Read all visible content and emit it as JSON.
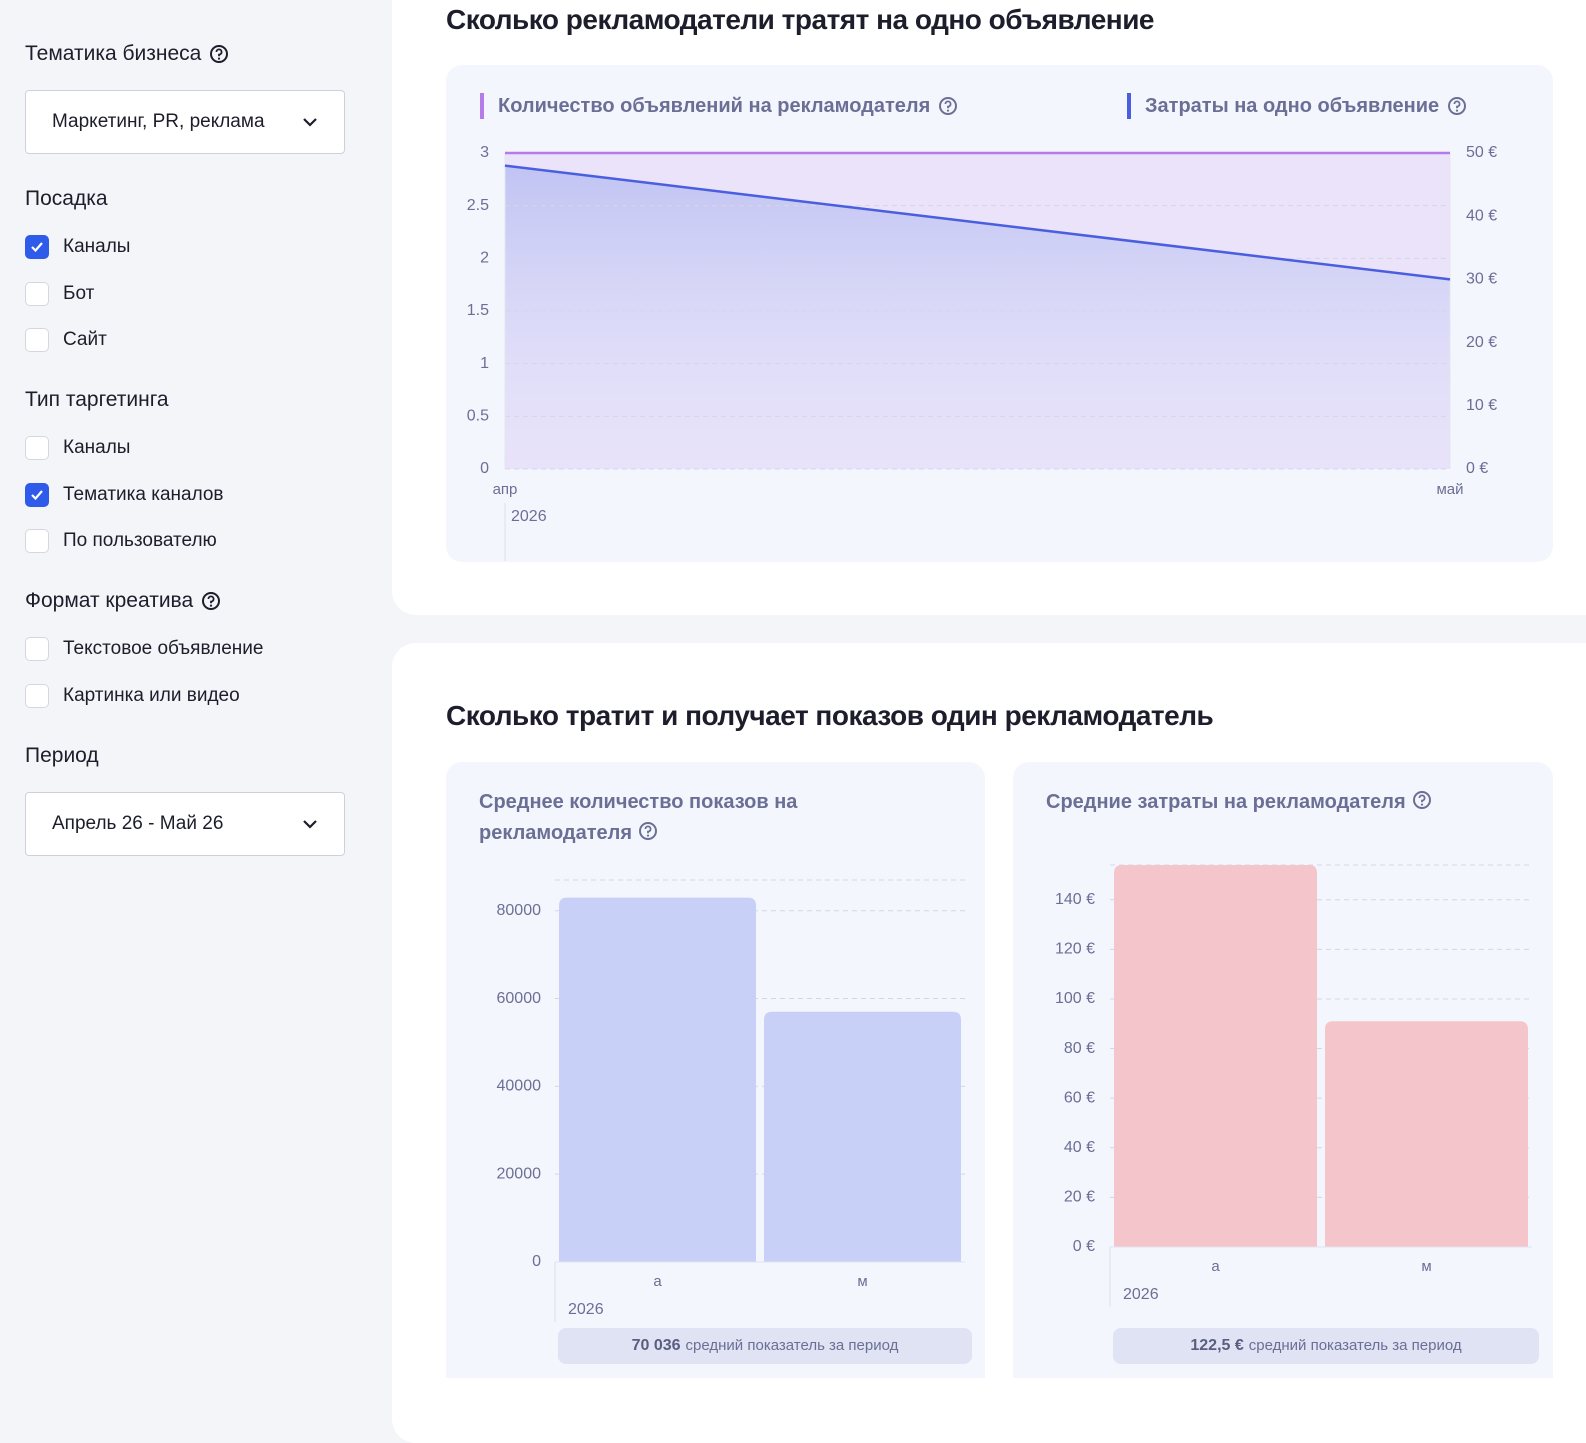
{
  "sidebar": {
    "groups": [
      {
        "title": "Тематика бизнеса",
        "help": true,
        "select": "Маркетинг, PR, реклама"
      },
      {
        "title": "Посадка",
        "options": [
          {
            "label": "Каналы",
            "checked": true
          },
          {
            "label": "Бот",
            "checked": false
          },
          {
            "label": "Сайт",
            "checked": false
          }
        ]
      },
      {
        "title": "Тип таргетинга",
        "options": [
          {
            "label": "Каналы",
            "checked": false
          },
          {
            "label": "Тематика каналов",
            "checked": true
          },
          {
            "label": "По пользователю",
            "checked": false
          }
        ]
      },
      {
        "title": "Формат креатива",
        "help": true,
        "options": [
          {
            "label": "Текстовое объявление",
            "checked": false
          },
          {
            "label": "Картинка или видео",
            "checked": false
          }
        ]
      },
      {
        "title": "Период",
        "select": "Апрель 26 - Май 26"
      }
    ]
  },
  "sections": [
    "Сколько рекламодатели тратят на одно объявление",
    "Сколько тратит и получает показов один рекламодатель"
  ],
  "chart_data": [
    {
      "type": "line",
      "categories": [
        "апр",
        "май"
      ],
      "x_sublabel": "2026",
      "series": [
        {
          "name": "Количество объявлений на рекламодателя",
          "color": "#b57be8",
          "values": [
            3,
            3
          ],
          "help": true
        },
        {
          "name": "Затраты на одно объявление",
          "color": "#4a5ee0",
          "values": [
            48,
            30
          ],
          "axis": "y2",
          "help": true
        }
      ],
      "ylim": [
        0,
        3
      ],
      "yticks": [
        0,
        0.5,
        1,
        1.5,
        2,
        2.5,
        3
      ],
      "y2lim": [
        0,
        50
      ],
      "y2ticks": [
        {
          "value": 0,
          "label": "0 €"
        },
        {
          "value": 10,
          "label": "10 €"
        },
        {
          "value": 20,
          "label": "20 €"
        },
        {
          "value": 30,
          "label": "30 €"
        },
        {
          "value": 40,
          "label": "40 €"
        },
        {
          "value": 50,
          "label": "50 €"
        }
      ],
      "grid": true
    },
    {
      "type": "bar",
      "title": "Среднее количество показов на рекламодателя",
      "help": true,
      "categories": [
        "а",
        "м"
      ],
      "x_sublabel": "2026",
      "values": [
        83000,
        57000
      ],
      "color": "#c8d0f7",
      "ylim": [
        0,
        87000
      ],
      "yticks": [
        0,
        20000,
        40000,
        60000,
        80000
      ],
      "grid": true,
      "summary_value": "70 036",
      "summary_text": "средний показатель за период"
    },
    {
      "type": "bar",
      "title": "Средние затраты на рекламодателя",
      "help": true,
      "categories": [
        "а",
        "м"
      ],
      "x_sublabel": "2026",
      "values": [
        154,
        91
      ],
      "color": "#f4c6cb",
      "ylim": [
        0,
        154
      ],
      "yticks": [
        {
          "value": 0,
          "label": "0 €"
        },
        {
          "value": 20,
          "label": "20 €"
        },
        {
          "value": 40,
          "label": "40 €"
        },
        {
          "value": 60,
          "label": "60 €"
        },
        {
          "value": 80,
          "label": "80 €"
        },
        {
          "value": 100,
          "label": "100 €"
        },
        {
          "value": 120,
          "label": "120 €"
        },
        {
          "value": 140,
          "label": "140 €"
        }
      ],
      "grid": true,
      "summary_value": "122,5 €",
      "summary_text": "средний показатель за период"
    }
  ]
}
